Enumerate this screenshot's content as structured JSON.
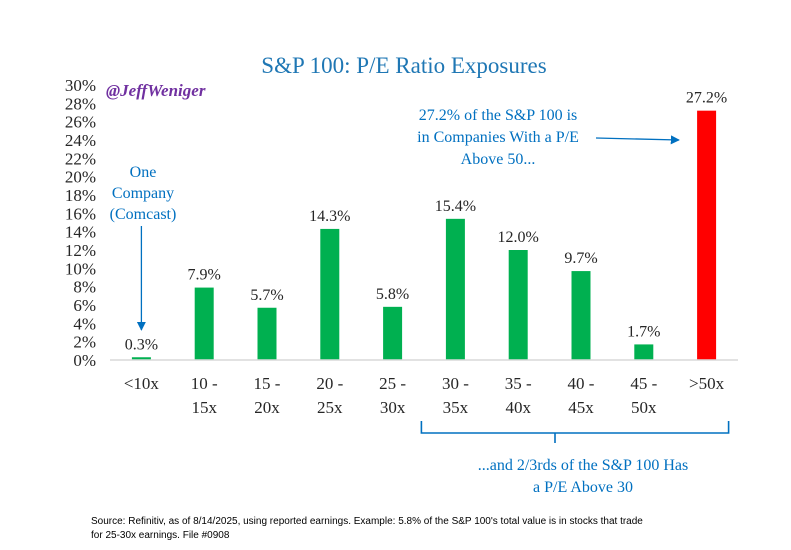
{
  "chart_data": {
    "type": "bar",
    "title": "S&P 100: P/E Ratio Exposures",
    "handle": "@JeffWeniger",
    "categories": [
      [
        "<10x"
      ],
      [
        "10 -",
        "15x"
      ],
      [
        "15 -",
        "20x"
      ],
      [
        "20 -",
        "25x"
      ],
      [
        "25 -",
        "30x"
      ],
      [
        "30 -",
        "35x"
      ],
      [
        "35 -",
        "40x"
      ],
      [
        "40 -",
        "45x"
      ],
      [
        "45 -",
        "50x"
      ],
      [
        ">50x"
      ]
    ],
    "values": [
      0.3,
      7.9,
      5.7,
      14.3,
      5.8,
      15.4,
      12.0,
      9.7,
      1.7,
      27.2
    ],
    "value_labels": [
      "0.3%",
      "7.9%",
      "5.7%",
      "14.3%",
      "5.8%",
      "15.4%",
      "12.0%",
      "9.7%",
      "1.7%",
      "27.2%"
    ],
    "bar_colors": [
      "#00b050",
      "#00b050",
      "#00b050",
      "#00b050",
      "#00b050",
      "#00b050",
      "#00b050",
      "#00b050",
      "#00b050",
      "#ff0000"
    ],
    "ylim": [
      0,
      30
    ],
    "y_ticks": [
      0,
      2,
      4,
      6,
      8,
      10,
      12,
      14,
      16,
      18,
      20,
      22,
      24,
      26,
      28,
      30
    ],
    "y_tick_labels": [
      "0%",
      "2%",
      "4%",
      "6%",
      "8%",
      "10%",
      "12%",
      "14%",
      "16%",
      "18%",
      "20%",
      "22%",
      "24%",
      "26%",
      "28%",
      "30%"
    ],
    "grid": false,
    "legend": "none",
    "annotations": [
      {
        "lines": [
          "One",
          "Company",
          "(Comcast)"
        ],
        "points_to": "<10x"
      },
      {
        "lines": [
          "27.2% of the S&P 100 is",
          "in Companies With a P/E",
          "Above 50..."
        ],
        "points_to": ">50x"
      },
      {
        "lines": [
          "...and 2/3rds of the S&P 100 Has",
          "a P/E Above 30"
        ],
        "brackets": [
          "30 -",
          ">50x"
        ]
      }
    ],
    "source": [
      "Source: Refinitiv, as of 8/14/2025, using reported earnings. Example: 5.8% of the S&P 100's total value is in stocks that trade",
      "for 25-30x earnings. File #0908"
    ]
  },
  "colors": {
    "title": "#1f77b4",
    "handle": "#7030a0",
    "annotation": "#0070c0",
    "bar": "#00b050",
    "highlight_bar": "#ff0000",
    "axis": "#d9d9d9",
    "text": "#262626"
  }
}
